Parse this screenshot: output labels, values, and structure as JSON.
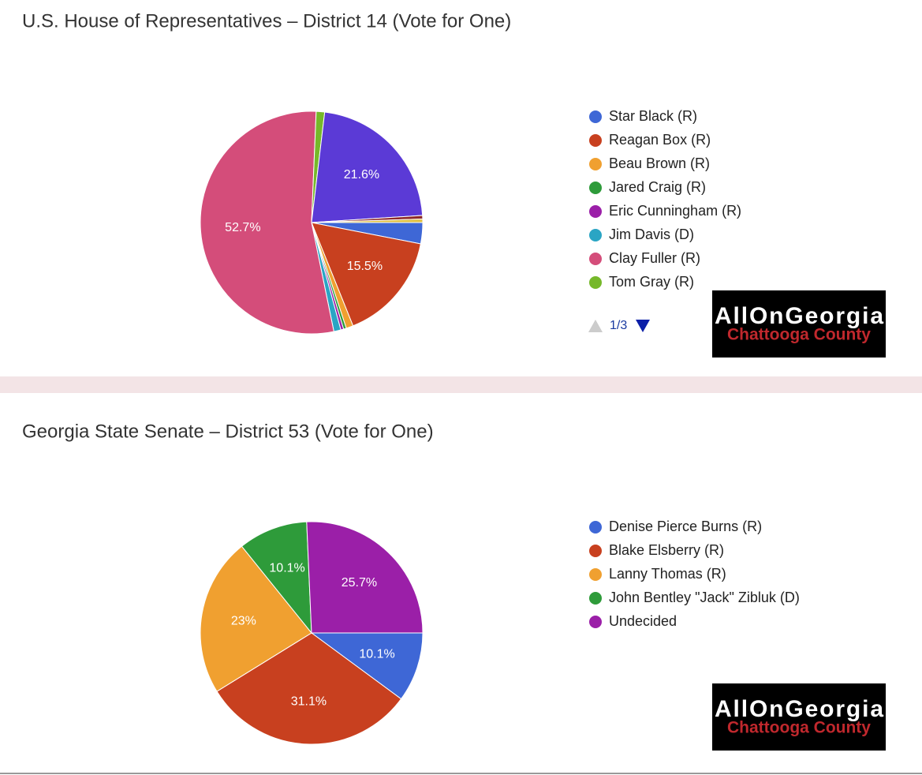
{
  "chart_data": [
    {
      "type": "pie",
      "title": "U.S. House of Representatives – District 14 (Vote for One)",
      "categories": [
        "Star Black (R)",
        "Reagan Box (R)",
        "Beau Brown (R)",
        "Jared Craig (R)",
        "Eric Cunningham (R)",
        "Jim Davis (D)",
        "Clay Fuller (R)",
        "Tom Gray (R)",
        null,
        null,
        null
      ],
      "values": [
        3,
        15.5,
        1,
        0.4,
        0.4,
        1,
        52.7,
        1.2,
        21.6,
        0.5,
        0.5
      ],
      "value_labels": [
        null,
        "15.5%",
        null,
        null,
        null,
        null,
        "52.7%",
        null,
        "21.6%",
        null,
        null
      ],
      "colors": [
        "#3e67d6",
        "#c8401f",
        "#f0a030",
        "#2e9b3a",
        "#9b1fa8",
        "#2aa5c4",
        "#d44d7a",
        "#76b82a",
        "#5b3ad6",
        "#8e2a2a",
        "#e0c040"
      ],
      "legend_page": "1/3"
    },
    {
      "type": "pie",
      "title": "Georgia State Senate – District 53 (Vote for One)",
      "categories": [
        "Denise Pierce Burns (R)",
        "Blake Elsberry (R)",
        "Lanny Thomas (R)",
        "John Bentley \"Jack\" Zibluk (D)",
        "Undecided"
      ],
      "values": [
        10.1,
        31.1,
        23,
        10.1,
        25.7
      ],
      "value_labels": [
        "10.1%",
        "31.1%",
        "23%",
        "10.1%",
        "25.7%"
      ],
      "colors": [
        "#3e67d6",
        "#c8401f",
        "#f0a030",
        "#2e9b3a",
        "#9b1fa8"
      ]
    }
  ],
  "logos": [
    {
      "line1": "AllOnGeorgia",
      "line2": "Chattooga County"
    },
    {
      "line1": "AllOnGeorgia",
      "line2": "Chattooga County"
    }
  ]
}
